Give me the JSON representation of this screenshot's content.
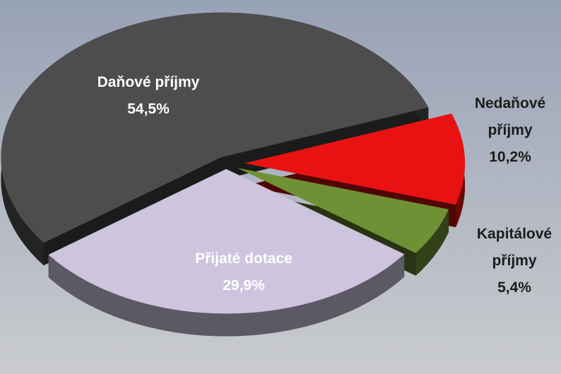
{
  "chart_data": {
    "type": "pie",
    "categories": [
      "Daňové příjmy",
      "Nedaňové příjmy",
      "Kapitálové příjmy",
      "Přijaté dotace"
    ],
    "values": [
      54.5,
      10.2,
      5.4,
      29.9
    ],
    "value_labels": [
      "54,5%",
      "10,2%",
      "5,4%",
      "29,9%"
    ],
    "colors": [
      "#4d4d4d",
      "#e81212",
      "#6f9135",
      "#cdc4de"
    ]
  }
}
